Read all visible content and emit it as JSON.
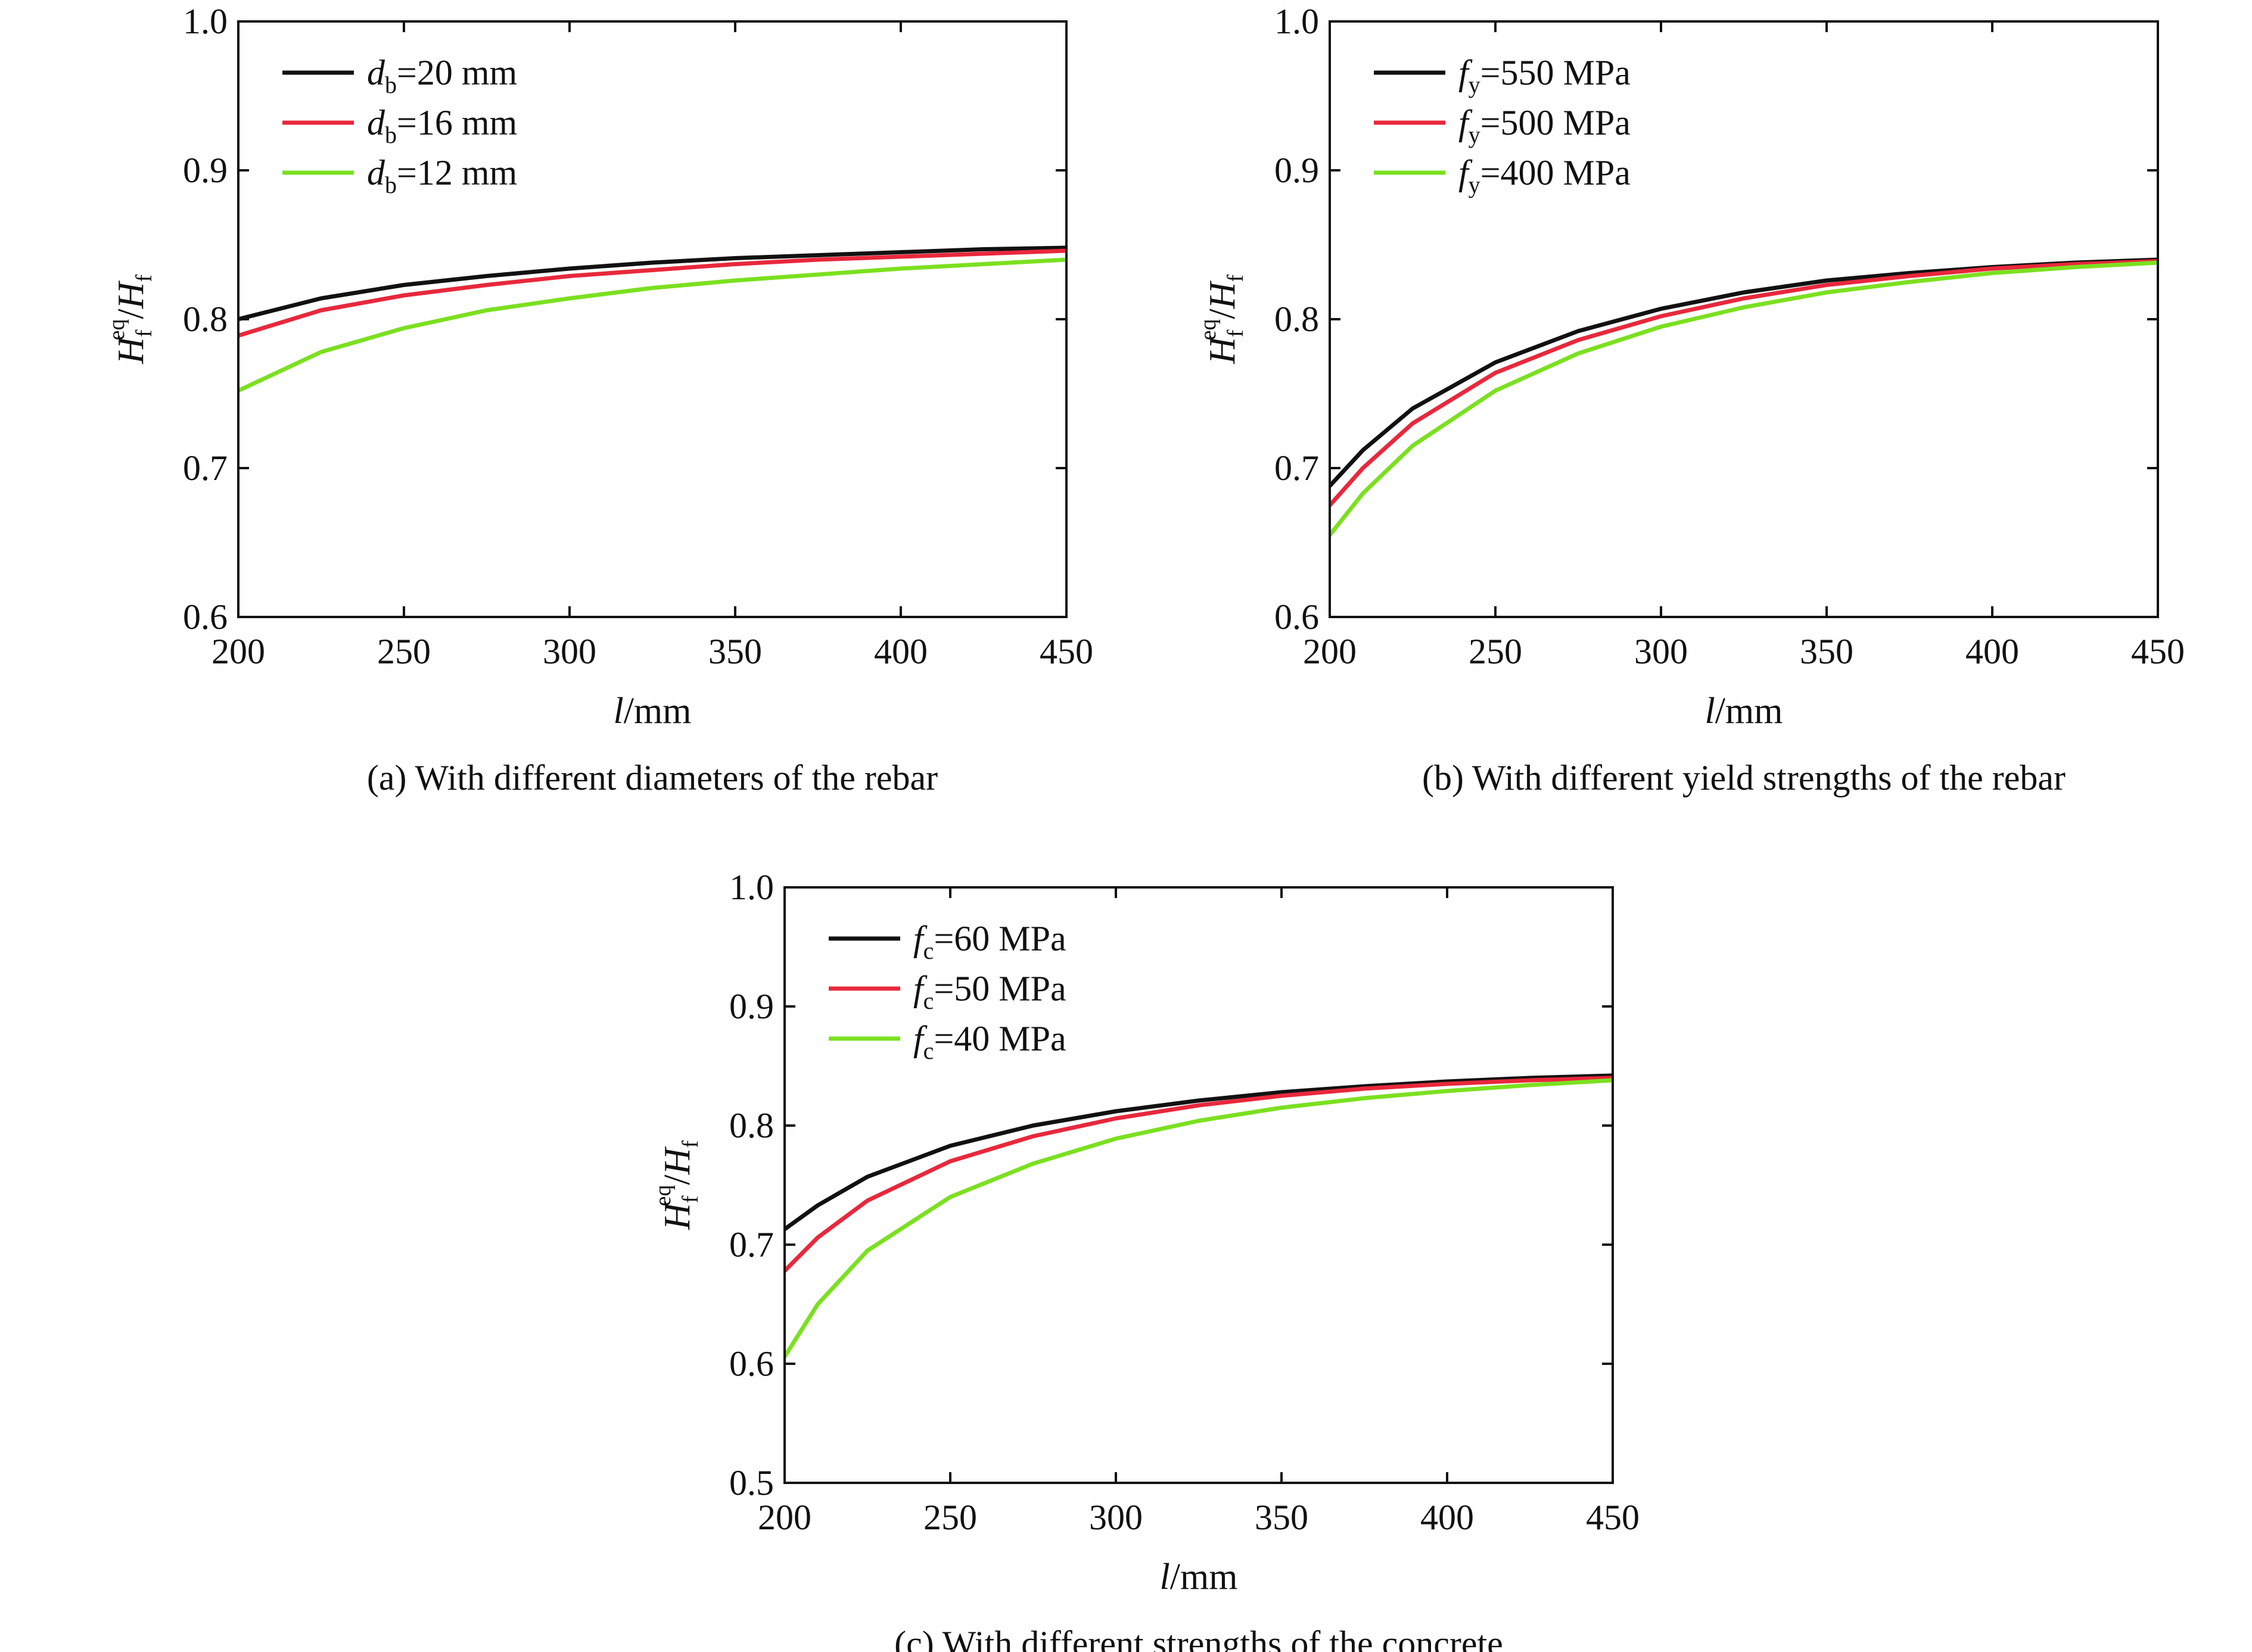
{
  "colors": {
    "black": "#111111",
    "red": "#e8283c",
    "green": "#7be020"
  },
  "chart_data": [
    {
      "type": "line",
      "caption": "(a) With different diameters of the rebar",
      "xlabel": {
        "var": "l",
        "unit": "/mm"
      },
      "ylabel": {
        "main": "H",
        "sup": "eq",
        "sub": "f",
        "div": "/",
        "main2": "H",
        "sub2": "f"
      },
      "xlim": [
        200,
        450
      ],
      "ylim": [
        0.6,
        1.0
      ],
      "xticks": [
        "200",
        "250",
        "300",
        "350",
        "400",
        "450"
      ],
      "yticks": [
        "0.6",
        "0.7",
        "0.8",
        "0.9",
        "1.0"
      ],
      "legend_position": "top-left",
      "x": [
        200,
        225,
        250,
        275,
        300,
        325,
        350,
        375,
        400,
        425,
        450
      ],
      "series": [
        {
          "var": "d",
          "sub": "b",
          "rest": "=20 mm",
          "color": "#111111",
          "values": [
            0.8,
            0.814,
            0.823,
            0.829,
            0.834,
            0.838,
            0.841,
            0.843,
            0.845,
            0.847,
            0.848
          ]
        },
        {
          "var": "d",
          "sub": "b",
          "rest": "=16 mm",
          "color": "#e8283c",
          "values": [
            0.789,
            0.806,
            0.816,
            0.823,
            0.829,
            0.833,
            0.837,
            0.84,
            0.842,
            0.844,
            0.846
          ]
        },
        {
          "var": "d",
          "sub": "b",
          "rest": "=12 mm",
          "color": "#7be020",
          "values": [
            0.752,
            0.778,
            0.794,
            0.806,
            0.814,
            0.821,
            0.826,
            0.83,
            0.834,
            0.837,
            0.84
          ]
        }
      ]
    },
    {
      "type": "line",
      "caption": "(b) With different yield strengths of the rebar",
      "xlabel": {
        "var": "l",
        "unit": "/mm"
      },
      "ylabel": {
        "main": "H",
        "sup": "eq",
        "sub": "f",
        "div": "/",
        "main2": "H",
        "sub2": "f"
      },
      "xlim": [
        200,
        450
      ],
      "ylim": [
        0.6,
        1.0
      ],
      "xticks": [
        "200",
        "250",
        "300",
        "350",
        "400",
        "450"
      ],
      "yticks": [
        "0.6",
        "0.7",
        "0.8",
        "0.9",
        "1.0"
      ],
      "legend_position": "top-left",
      "x": [
        200,
        210,
        225,
        250,
        275,
        300,
        325,
        350,
        375,
        400,
        425,
        450
      ],
      "series": [
        {
          "var": "f",
          "sub": "y",
          "rest": "=550 MPa",
          "color": "#111111",
          "values": [
            0.688,
            0.712,
            0.74,
            0.771,
            0.792,
            0.807,
            0.818,
            0.826,
            0.831,
            0.835,
            0.838,
            0.84
          ]
        },
        {
          "var": "f",
          "sub": "y",
          "rest": "=500 MPa",
          "color": "#e8283c",
          "values": [
            0.675,
            0.7,
            0.73,
            0.764,
            0.786,
            0.802,
            0.814,
            0.823,
            0.829,
            0.834,
            0.837,
            0.839
          ]
        },
        {
          "var": "f",
          "sub": "y",
          "rest": "=400 MPa",
          "color": "#7be020",
          "values": [
            0.655,
            0.683,
            0.715,
            0.752,
            0.777,
            0.795,
            0.808,
            0.818,
            0.825,
            0.831,
            0.835,
            0.838
          ]
        }
      ]
    },
    {
      "type": "line",
      "caption": "(c) With different strengths of the concrete",
      "xlabel": {
        "var": "l",
        "unit": "/mm"
      },
      "ylabel": {
        "main": "H",
        "sup": "eq",
        "sub": "f",
        "div": "/",
        "main2": "H",
        "sub2": "f"
      },
      "xlim": [
        200,
        450
      ],
      "ylim": [
        0.5,
        1.0
      ],
      "xticks": [
        "200",
        "250",
        "300",
        "350",
        "400",
        "450"
      ],
      "yticks": [
        "0.5",
        "0.6",
        "0.7",
        "0.8",
        "0.9",
        "1.0"
      ],
      "legend_position": "top-left",
      "x": [
        200,
        210,
        225,
        250,
        275,
        300,
        325,
        350,
        375,
        400,
        425,
        450
      ],
      "series": [
        {
          "var": "f",
          "sub": "c",
          "rest": "=60 MPa",
          "color": "#111111",
          "values": [
            0.713,
            0.733,
            0.757,
            0.783,
            0.8,
            0.812,
            0.821,
            0.828,
            0.833,
            0.837,
            0.84,
            0.842
          ]
        },
        {
          "var": "f",
          "sub": "c",
          "rest": "=50 MPa",
          "color": "#e8283c",
          "values": [
            0.678,
            0.706,
            0.737,
            0.77,
            0.791,
            0.806,
            0.817,
            0.825,
            0.831,
            0.835,
            0.838,
            0.84
          ]
        },
        {
          "var": "f",
          "sub": "c",
          "rest": "=40 MPa",
          "color": "#7be020",
          "values": [
            0.606,
            0.65,
            0.695,
            0.74,
            0.768,
            0.789,
            0.804,
            0.815,
            0.823,
            0.829,
            0.834,
            0.838
          ]
        }
      ]
    }
  ]
}
